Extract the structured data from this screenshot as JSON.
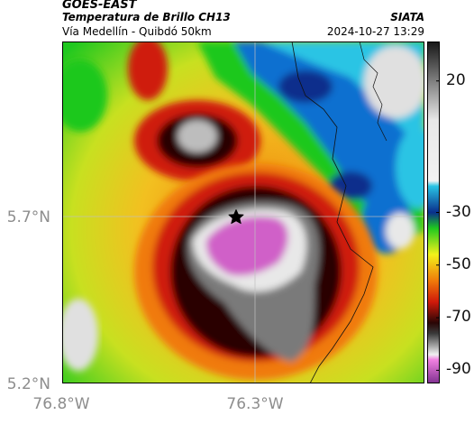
{
  "header": {
    "satellite": "GOES-EAST",
    "product": "Temperatura de Brillo CH13",
    "brand": "SIATA",
    "route": "Vía Medellín - Quibdó 50km",
    "timestamp": "2024-10-27 13:29"
  },
  "map": {
    "lat_labels": [
      "5.7°N",
      "5.2°N"
    ],
    "lon_labels": [
      "76.8°W",
      "76.3°W"
    ],
    "marker": "star-icon",
    "grid": true
  },
  "colorbar": {
    "tick_labels": [
      "20",
      "-30",
      "-50",
      "-70",
      "-90"
    ],
    "tick_values": [
      20,
      -30,
      -50,
      -70,
      -90
    ],
    "range": [
      -95,
      35
    ],
    "stops": [
      {
        "value": 35,
        "color": "#161616"
      },
      {
        "value": 5,
        "color": "#e8e8e8"
      },
      {
        "value": -18,
        "color": "#f2f2f2"
      },
      {
        "value": -20,
        "color": "#29c4e4"
      },
      {
        "value": -30,
        "color": "#0a2f8c"
      },
      {
        "value": -36,
        "color": "#1fc81f"
      },
      {
        "value": -46,
        "color": "#f2f21a"
      },
      {
        "value": -56,
        "color": "#f07a0a"
      },
      {
        "value": -64,
        "color": "#cf1a0a"
      },
      {
        "value": -72,
        "color": "#2a0606"
      },
      {
        "value": -76,
        "color": "#3a3a3a"
      },
      {
        "value": -84,
        "color": "#f0f0f0"
      },
      {
        "value": -86,
        "color": "#f080e0"
      },
      {
        "value": -95,
        "color": "#803090"
      }
    ]
  }
}
